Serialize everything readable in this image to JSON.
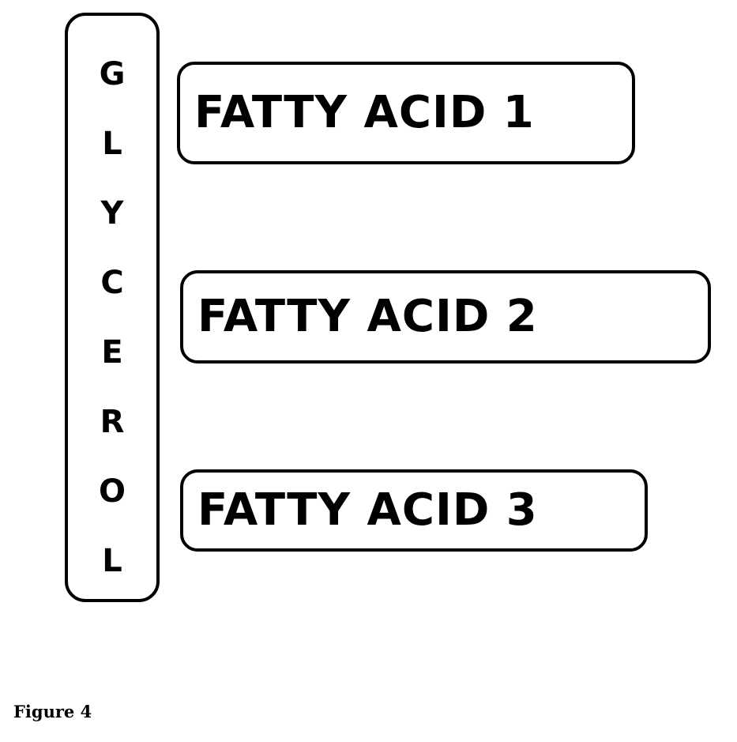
{
  "diagram": {
    "glycerol_letters": [
      "G",
      "L",
      "Y",
      "C",
      "E",
      "R",
      "O",
      "L"
    ],
    "fatty_acids": [
      {
        "label": "FATTY ACID 1"
      },
      {
        "label": "FATTY ACID 2"
      },
      {
        "label": "FATTY ACID 3"
      }
    ]
  },
  "caption": "Figure 4"
}
